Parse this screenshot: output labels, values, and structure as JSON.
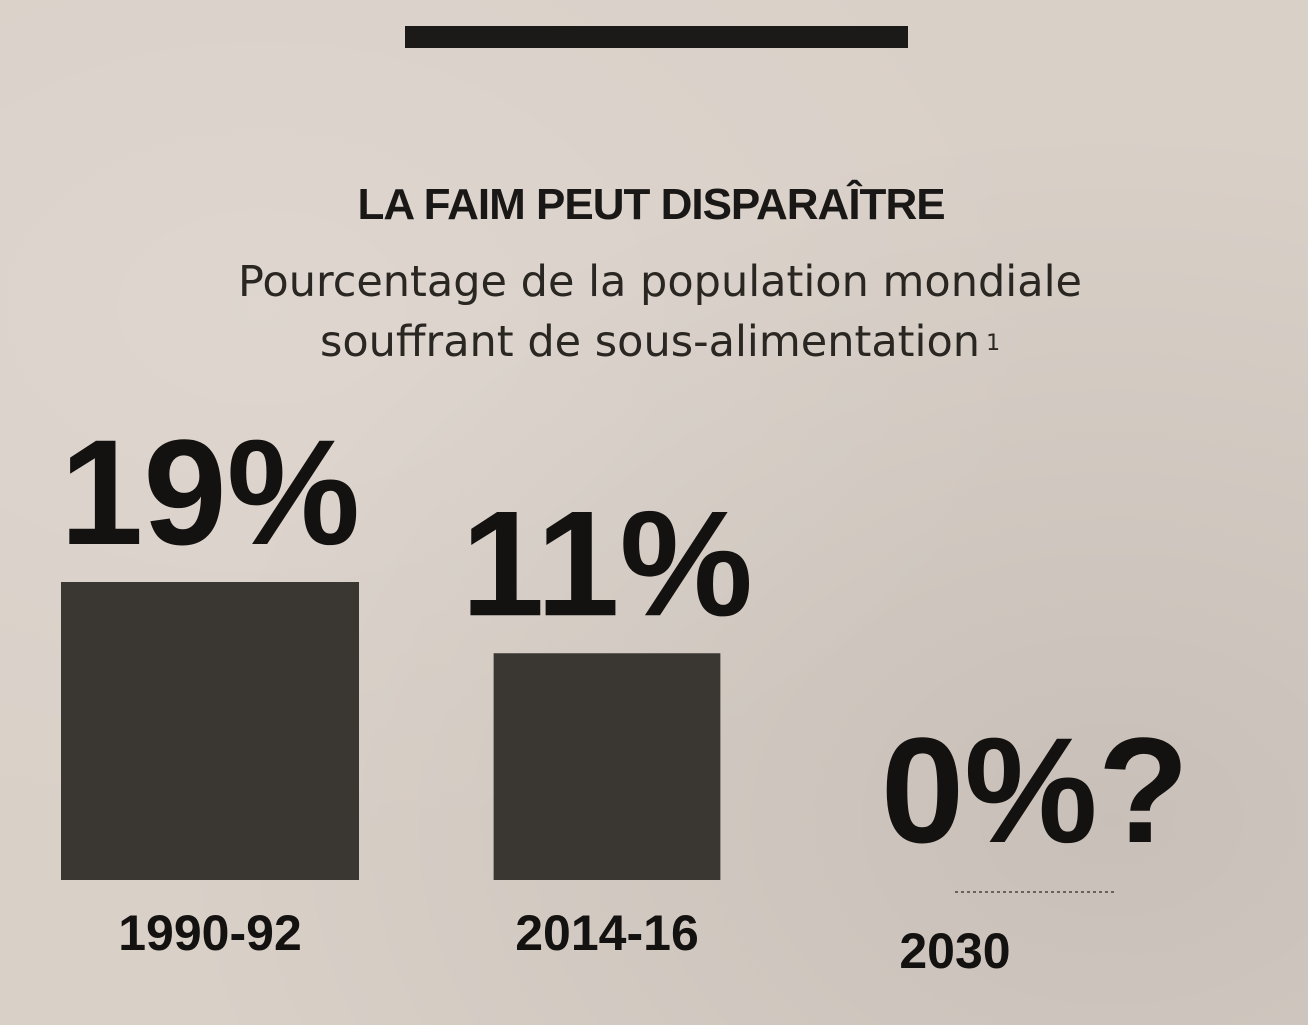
{
  "chart_data": {
    "type": "bar",
    "title": "LA FAIM PEUT DISPARAÎTRE",
    "subtitle": "Pourcentage de la population mondiale souffrant de sous-alimentation",
    "footnote_marker": "1",
    "categories": [
      "1990-92",
      "2014-16",
      "2030"
    ],
    "values": [
      19,
      11,
      0
    ],
    "value_labels": [
      "19%",
      "11%",
      "0%?"
    ],
    "ylim": [
      0,
      19
    ],
    "bar_color": "#3a3632",
    "grid": false
  }
}
